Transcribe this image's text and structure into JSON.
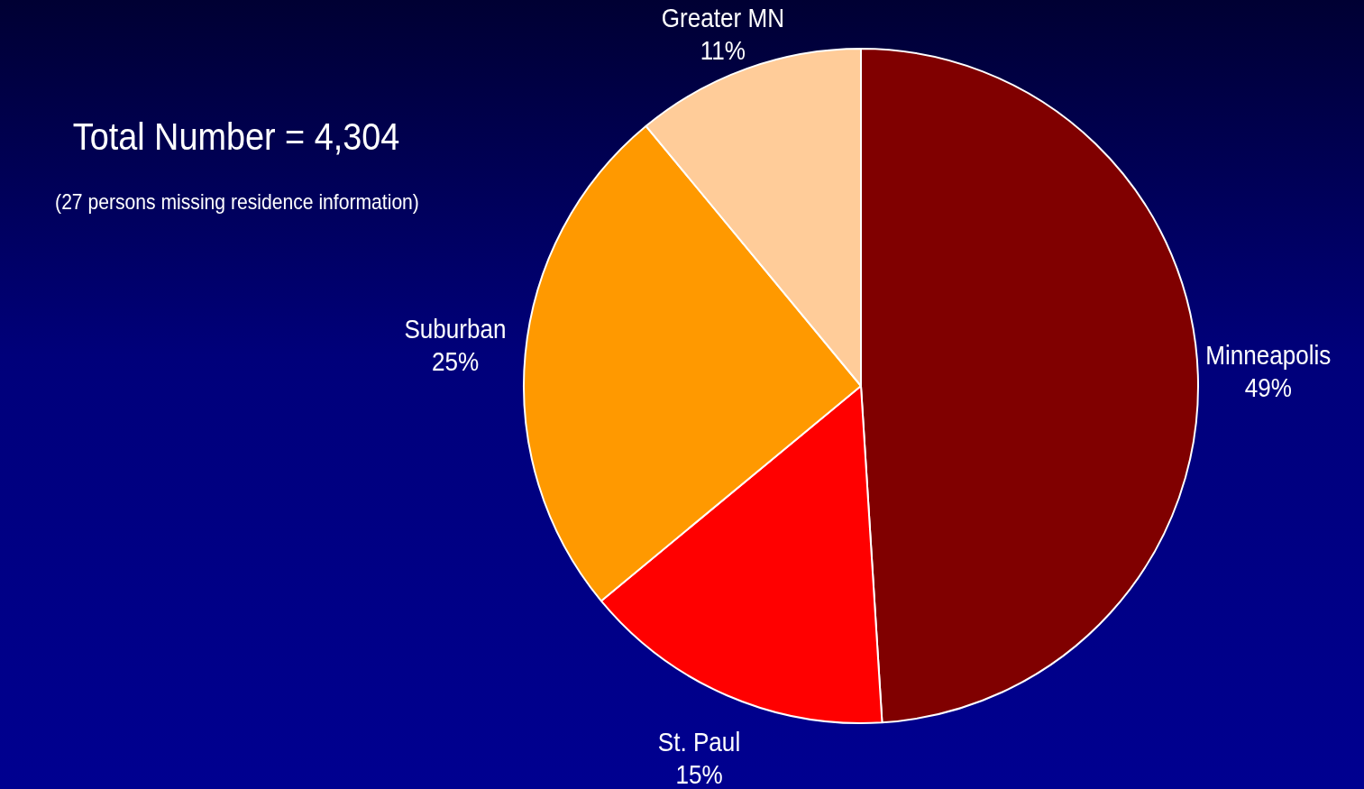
{
  "chart_data": {
    "type": "pie",
    "title": "Total Number = 4,304",
    "subtitle": "(27 persons missing residence information)",
    "categories": [
      "Minneapolis",
      "St. Paul",
      "Suburban",
      "Greater MN"
    ],
    "values": [
      49,
      15,
      25,
      11
    ],
    "value_labels": [
      "49%",
      "15%",
      "25%",
      "11%"
    ],
    "colors": [
      "#800000",
      "#ff0000",
      "#ff9900",
      "#ffcc99"
    ],
    "legend": false
  }
}
